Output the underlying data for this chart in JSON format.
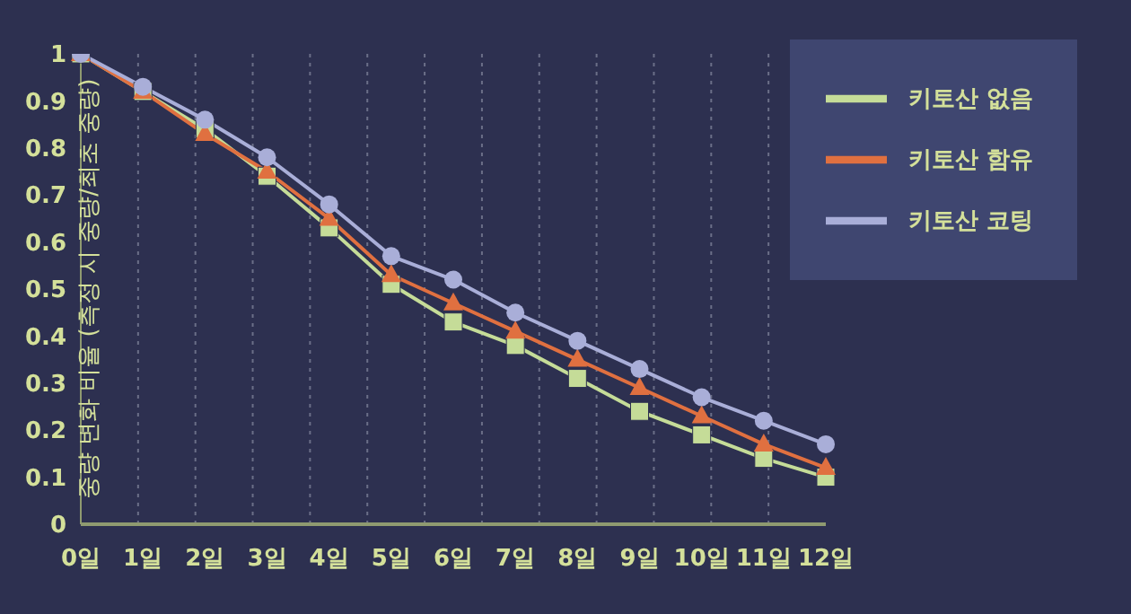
{
  "chart_data": {
    "type": "line",
    "ylabel": "중량 변화 비율 (측정 시 중량/최초 중량)",
    "categories": [
      "0일",
      "1일",
      "2일",
      "3일",
      "4일",
      "5일",
      "6일",
      "7일",
      "8일",
      "9일",
      "10일",
      "11일",
      "12일"
    ],
    "series": [
      {
        "name": "키토산 없음",
        "color": "#c5dc98",
        "marker": "square",
        "values": [
          1,
          0.92,
          0.84,
          0.74,
          0.63,
          0.51,
          0.43,
          0.38,
          0.31,
          0.24,
          0.19,
          0.14,
          0.1
        ]
      },
      {
        "name": "키토산 함유",
        "color": "#e07040",
        "marker": "triangle",
        "values": [
          1,
          0.92,
          0.83,
          0.75,
          0.65,
          0.53,
          0.47,
          0.41,
          0.35,
          0.29,
          0.23,
          0.17,
          0.12
        ]
      },
      {
        "name": "키토산 코팅",
        "color": "#a9aed8",
        "marker": "circle",
        "values": [
          1,
          0.93,
          0.86,
          0.78,
          0.68,
          0.57,
          0.52,
          0.45,
          0.39,
          0.33,
          0.27,
          0.22,
          0.17
        ]
      }
    ],
    "ylim": [
      0,
      1
    ],
    "yticks": [
      0,
      0.1,
      0.2,
      0.3,
      0.4,
      0.5,
      0.6,
      0.7,
      0.8,
      0.9,
      1
    ],
    "grid": "x",
    "legend": "top right"
  }
}
